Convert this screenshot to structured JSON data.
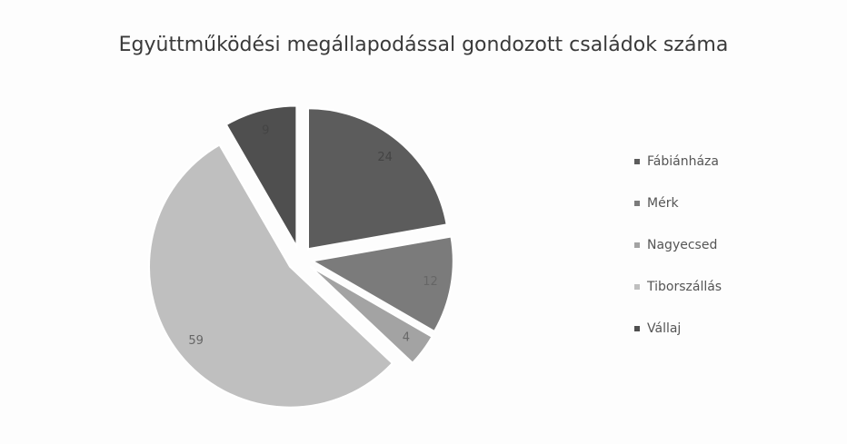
{
  "chart_data": {
    "type": "pie",
    "title": "Együttműködési megállapodással gondozott családok száma",
    "categories": [
      "Fábiánháza",
      "Mérk",
      "Nagyecsed",
      "Tiborszállás",
      "Vállaj"
    ],
    "values": [
      24,
      12,
      4,
      59,
      9
    ],
    "colors": [
      "#5c5c5c",
      "#7b7b7b",
      "#a3a3a3",
      "#bfbfbf",
      "#4f4f4f"
    ],
    "legend": "right"
  }
}
